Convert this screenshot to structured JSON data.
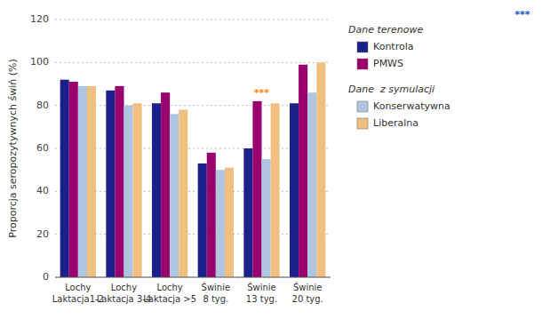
{
  "chart_data": {
    "type": "bar",
    "ylabel": "Proporcja seropozytywnych świń (%)",
    "categories": [
      "Lochy\nLaktacja1-2",
      "Lochy\nLaktacja 3-4",
      "Lochy\nLaktacja >5",
      "Świnie\n8 tyg.",
      "Świnie\n13 tyg.",
      "Świnie\n20 tyg."
    ],
    "series": [
      {
        "name": "Kontrola",
        "group": "Dane terenowe",
        "color": "#1b1f8a",
        "values": [
          92,
          87,
          81,
          53,
          60,
          81
        ]
      },
      {
        "name": "PMWS",
        "group": "Dane terenowe",
        "color": "#99006e",
        "values": [
          91,
          89,
          86,
          58,
          82,
          99
        ]
      },
      {
        "name": "Konserwatywna",
        "group": "Dane  z symulacji",
        "color": "#aec6e0",
        "values": [
          89,
          80,
          76,
          50,
          55,
          86
        ]
      },
      {
        "name": "Liberalna",
        "group": "Dane  z symulacji",
        "color": "#f0c080",
        "values": [
          89,
          81,
          78,
          51,
          81,
          100
        ]
      }
    ],
    "ylim": [
      0,
      120
    ],
    "yticks": [
      0,
      20,
      40,
      60,
      80,
      100,
      120
    ],
    "grid": true,
    "annotations": [
      {
        "text": "***",
        "color": "#ff8800",
        "category": 4,
        "y": 83.5
      },
      {
        "text": "***",
        "color": "#1155cc"
      }
    ]
  }
}
